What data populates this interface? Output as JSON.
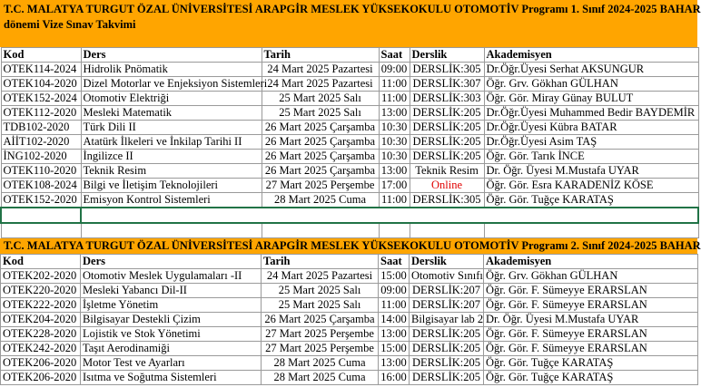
{
  "sections": [
    {
      "title": "T.C. MALATYA TURGUT ÖZAL ÜNİVERSİTESİ ARAPGİR MESLEK YÜKSEKOKULU OTOMOTİV  Programı 1. Sınıf 2024-2025 BAHAR",
      "title2": "dönemi Vize Sınav Takvimi",
      "headers": [
        "Kod",
        "Ders",
        "Tarih",
        "Saat",
        "Derslik",
        "Akademisyen"
      ],
      "rows": [
        [
          "OTEK114-2024",
          " Hidrolik Pnömatik",
          "24 Mart 2025 Pazartesi",
          "09:00",
          "DERSLİK:305",
          "Dr.Öğr.Üyesi Serhat AKSUNGUR"
        ],
        [
          "OTEK104-2020",
          " Dizel Motorlar ve Enjeksiyon Sistemleri",
          "24 Mart 2025 Pazartesi",
          "11:00",
          "DERSLİK:307",
          "Öğr. Grv. Gökhan GÜLHAN"
        ],
        [
          "OTEK152-2024",
          " Otomotiv Elektriği",
          "25 Mart 2025 Salı",
          "11:00",
          "DERSLİK:303",
          "Öğr. Gör. Miray Günay BULUT"
        ],
        [
          "OTEK112-2020",
          "Mesleki Matematik",
          "25 Mart 2025 Salı",
          "13:00",
          "DERSLİK:205",
          "Dr.Öğr.Üyesi Muhammed Bedir BAYDEMİR"
        ],
        [
          "TDB102-2020",
          "Türk Dili II",
          "26 Mart 2025 Çarşamba",
          "10:30",
          "DERSLİK:205",
          "Dr.Öğr.Üyesi Kübra BATAR"
        ],
        [
          "AİİT102-2020",
          "Atatürk İlkeleri ve İnkilap Tarihi II",
          "26 Mart 2025 Çarşamba",
          "10:30",
          "DERSLİK:205",
          "Dr.Öğr.Üyesi Asim TAŞ"
        ],
        [
          "İNG102-2020",
          "İngilizce II",
          "26 Mart 2025 Çarşamba",
          "10:30",
          "DERSLİK:205",
          "Öğr. Gör. Tarık İNCE"
        ],
        [
          "OTEK110-2020",
          " Teknik Resim",
          "26 Mart 2025 Çarşamba",
          "13:00",
          "Teknik Resim",
          "Dr. Öğr. Üyesi M.Mustafa UYAR"
        ],
        [
          "OTEK108-2024",
          " Bilgi ve İletişim Teknolojileri",
          "27 Mart 2025 Perşembe",
          "17:00",
          "Online",
          "Öğr. Gör. Esra KARADENİZ KÖSE"
        ],
        [
          "OTEK152-2020",
          " Emisyon Kontrol Sistemleri",
          "28 Mart 2025 Cuma",
          "11:00",
          "DERSLİK:305",
          "Öğr. Gör. Tuğçe KARATAŞ"
        ]
      ]
    },
    {
      "title": "T.C. MALATYA TURGUT ÖZAL ÜNİVERSİTESİ ARAPGİR MESLEK YÜKSEKOKULU OTOMOTİV  Programı 2. Sınıf 2024-2025 BAHAR",
      "headers": [
        "Kod",
        "Ders",
        "Tarih",
        "Saat",
        "Derslik",
        "Akademisyen"
      ],
      "rows": [
        [
          "OTEK202-2020",
          " Otomotiv Meslek Uygulamaları -II",
          "24 Mart 2025 Pazartesi",
          "15:00",
          "Otomotiv Sınıfı",
          "Öğr. Grv. Gökhan GÜLHAN"
        ],
        [
          "OTEK220-2020",
          " Mesleki Yabancı Dil-II",
          "25 Mart 2025 Salı",
          "09:00",
          "DERSLİK:207",
          "Öğr. Gör. F. Sümeyye ERARSLAN"
        ],
        [
          "OTEK222-2020",
          " İşletme Yönetim",
          "25 Mart 2025 Salı",
          "11:00",
          "DERSLİK:207",
          "Öğr. Gör. F. Sümeyye ERARSLAN"
        ],
        [
          "OTEK204-2020",
          " Bilgisayar Destekli Çizim",
          "26 Mart 2025 Çarşamba",
          "14:00",
          "Bilgisayar lab 2",
          "Dr. Öğr. Üyesi M.Mustafa UYAR"
        ],
        [
          "OTEK228-2020",
          " Lojistik ve Stok Yönetimi",
          "27 Mart 2025 Perşembe",
          "13:00",
          "DERSLİK:205",
          "Öğr. Gör. F. Sümeyye ERARSLAN"
        ],
        [
          "OTEK242-2020",
          "Taşıt Aerodinamiği",
          "27 Mart 2025 Perşembe",
          "15:00",
          "DERSLİK:205",
          "Öğr. Gör. F. Sümeyye ERARSLAN"
        ],
        [
          "OTEK206-2020",
          "Motor Test ve Ayarları",
          "28 Mart 2025 Cuma",
          "13:00",
          "DERSLİK:205",
          "Öğr. Gör. Tuğçe KARATAŞ"
        ],
        [
          "OTEK206-2020",
          " Isıtma ve Soğutma Sistemleri",
          "28 Mart 2025 Cuma",
          "16:00",
          "DERSLİK:205",
          "Öğr. Gör. Tuğçe KARATAŞ"
        ]
      ]
    }
  ],
  "colors": {
    "banner": "#FFA500",
    "online": "#E00000",
    "selection": "#217346"
  }
}
